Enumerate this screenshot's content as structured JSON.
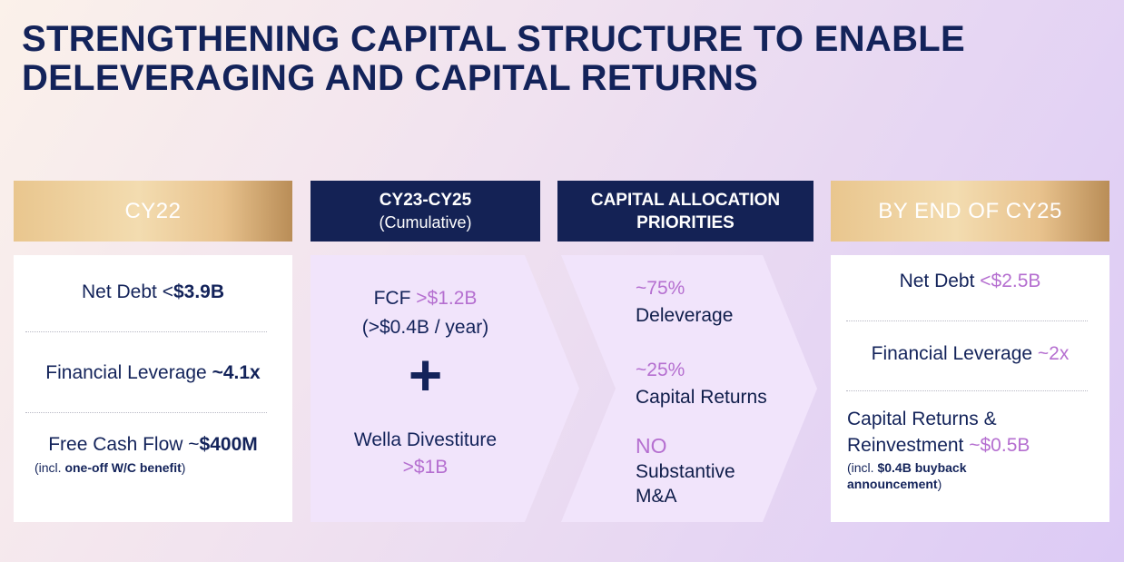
{
  "title": {
    "line1": "STRENGTHENING CAPITAL STRUCTURE TO ENABLE",
    "line2": "DELEVERAGING AND CAPITAL RETURNS"
  },
  "columns": {
    "cy22": {
      "header": "CY22",
      "net_debt_label": "Net Debt <",
      "net_debt_value": "$3.9B",
      "leverage_label": "Financial Leverage ",
      "leverage_value": "~4.1x",
      "fcf_label": "Free Cash Flow ~",
      "fcf_value": "$400M",
      "fcf_note_prefix": "(incl. ",
      "fcf_note_bold": "one-off W/C benefit",
      "fcf_note_suffix": ")"
    },
    "cy23_25": {
      "header_line1": "CY23-CY25",
      "header_line2": "(Cumulative)",
      "fcf_label": "FCF ",
      "fcf_value": ">$1.2B",
      "fcf_sub": "(>$0.4B / year)",
      "plus": "+",
      "divestiture_label": "Wella Divestiture",
      "divestiture_value": ">$1B"
    },
    "priorities": {
      "header_line1": "CAPITAL ALLOCATION",
      "header_line2": "PRIORITIES",
      "items": [
        {
          "value": "~75%",
          "label": "Deleverage"
        },
        {
          "value": "~25%",
          "label": "Capital Returns"
        },
        {
          "value": "NO",
          "label": "Substantive M&A"
        }
      ]
    },
    "by_end": {
      "header": "BY END OF CY25",
      "net_debt_label": "Net Debt ",
      "net_debt_value": "<$2.5B",
      "leverage_label": "Financial Leverage ",
      "leverage_value": "~2x",
      "returns_line1": "Capital Returns &",
      "returns_line2_label": "Reinvestment ",
      "returns_value": "~$0.5B",
      "returns_note_prefix": "(incl. ",
      "returns_note_bold": "$0.4B buyback announcement",
      "returns_note_suffix": ")"
    }
  },
  "colors": {
    "navy": "#142255",
    "highlight": "#b56fd0",
    "gold": "#e9c68e"
  }
}
